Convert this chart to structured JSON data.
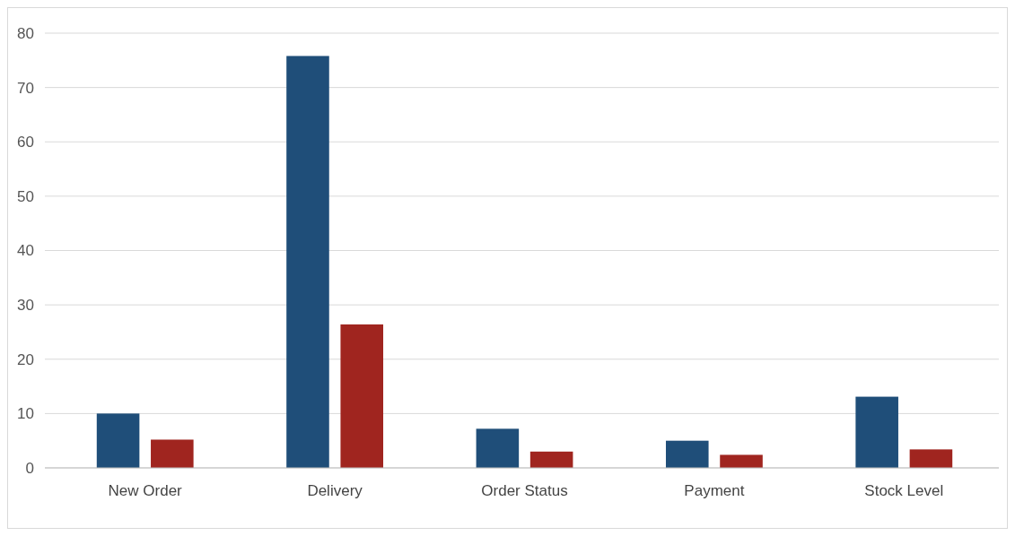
{
  "chart_data": {
    "type": "bar",
    "categories": [
      "New Order",
      "Delivery",
      "Order Status",
      "Payment",
      "Stock Level"
    ],
    "series": [
      {
        "color": "#1f4e79",
        "values": [
          10,
          75.8,
          7.2,
          5,
          13.1
        ]
      },
      {
        "color": "#a0251f",
        "values": [
          5.2,
          26.4,
          3,
          2.4,
          3.4
        ]
      }
    ],
    "ylim": [
      0,
      80
    ],
    "yticks": [
      0,
      10,
      20,
      30,
      40,
      50,
      60,
      70,
      80
    ],
    "grid": "y"
  }
}
